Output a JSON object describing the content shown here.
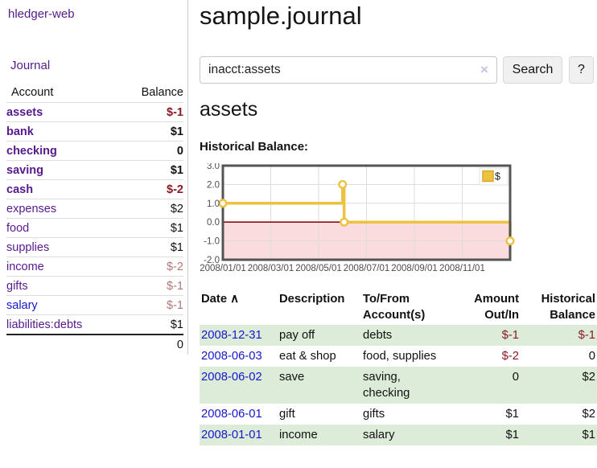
{
  "colors": {
    "purple": "#551a8b",
    "blue": "#1717cc",
    "neg_strong": "#8b1a26",
    "neg_faded": "#b27878",
    "stripe_green": "#ddecd8",
    "chart_gold": "#edc240",
    "chart_negative_fill": "#fadcdc",
    "chart_zero_line": "#8b1010"
  },
  "app": {
    "title": "hledger-web"
  },
  "nav": {
    "journal": "Journal"
  },
  "sidebar": {
    "account_header": "Account",
    "balance_header": "Balance",
    "accounts": [
      {
        "name": "assets",
        "indent": 1,
        "bold": true,
        "balance": "$-1",
        "balance_class": "neg-strong",
        "link_class": "purple"
      },
      {
        "name": "bank",
        "indent": 2,
        "bold": true,
        "balance": "$1",
        "balance_class": "",
        "link_class": "purple"
      },
      {
        "name": "checking",
        "indent": 3,
        "bold": true,
        "balance": "0",
        "balance_class": "",
        "link_class": "purple"
      },
      {
        "name": "saving",
        "indent": 3,
        "bold": true,
        "balance": "$1",
        "balance_class": "",
        "link_class": "purple"
      },
      {
        "name": "cash",
        "indent": 2,
        "bold": true,
        "balance": "$-2",
        "balance_class": "neg-strong",
        "link_class": "purple"
      },
      {
        "name": "expenses",
        "indent": 1,
        "bold": false,
        "balance": "$2",
        "balance_class": "",
        "link_class": "purple"
      },
      {
        "name": "food",
        "indent": 2,
        "bold": false,
        "balance": "$1",
        "balance_class": "",
        "link_class": "purple"
      },
      {
        "name": "supplies",
        "indent": 2,
        "bold": false,
        "balance": "$1",
        "balance_class": "",
        "link_class": "purple"
      },
      {
        "name": "income",
        "indent": 1,
        "bold": false,
        "balance": "$-2",
        "balance_class": "neg-faded",
        "link_class": "purple"
      },
      {
        "name": "gifts",
        "indent": 2,
        "bold": false,
        "balance": "$-1",
        "balance_class": "neg-faded",
        "link_class": "purple"
      },
      {
        "name": "salary",
        "indent": 2,
        "bold": false,
        "balance": "$-1",
        "balance_class": "neg-faded",
        "link_class": "blue"
      },
      {
        "name": "liabilities:debts",
        "indent": 1,
        "bold": false,
        "balance": "$1",
        "balance_class": "",
        "link_class": "purple"
      }
    ],
    "total": "0"
  },
  "main": {
    "title": "sample.journal",
    "account_heading": "assets",
    "section_label": "Historical Balance:"
  },
  "search": {
    "value": "inacct:assets",
    "clear_icon": "×",
    "search_button": "Search",
    "help_button": "?"
  },
  "chart_data": {
    "type": "line",
    "style": "steps",
    "title": "Historical Balance",
    "series": [
      {
        "name": "$",
        "color": "#edc240",
        "points": [
          [
            "2008-01-01",
            1
          ],
          [
            "2008-06-01",
            2
          ],
          [
            "2008-06-03",
            0
          ],
          [
            "2008-12-31",
            -1
          ]
        ]
      }
    ],
    "ylim": [
      -2,
      3
    ],
    "yticks": [
      "3.0",
      "2.0",
      "1.0",
      "0.0",
      "-1.0",
      "-2.0"
    ],
    "ytick_values": [
      3,
      2,
      1,
      0,
      -1,
      -2
    ],
    "xlim": [
      "2008-01-01",
      "2008-12-31"
    ],
    "xticks": [
      "2008/01/01",
      "2008/03/01",
      "2008/05/01",
      "2008/07/01",
      "2008/09/01",
      "2008/11/01"
    ],
    "grid": true,
    "legend": {
      "label": "$",
      "position": "top-right"
    },
    "negative_region_shaded": true
  },
  "register": {
    "headers": {
      "date": "Date",
      "sort_icon": "∧",
      "description": "Description",
      "tofrom": "To/From\nAccount(s)",
      "amount": "Amount\nOut/In",
      "balance": "Historical\nBalance"
    },
    "rows": [
      {
        "date": "2008-12-31",
        "description": "pay off",
        "tofrom": "debts",
        "amount": "$-1",
        "amount_neg": true,
        "balance": "$-1",
        "balance_neg": true
      },
      {
        "date": "2008-06-03",
        "description": "eat & shop",
        "tofrom": "food, supplies",
        "amount": "$-2",
        "amount_neg": true,
        "balance": "0",
        "balance_neg": false
      },
      {
        "date": "2008-06-02",
        "description": "save",
        "tofrom": "saving,\nchecking",
        "amount": "0",
        "amount_neg": false,
        "balance": "$2",
        "balance_neg": false
      },
      {
        "date": "2008-06-01",
        "description": "gift",
        "tofrom": "gifts",
        "amount": "$1",
        "amount_neg": false,
        "balance": "$2",
        "balance_neg": false
      },
      {
        "date": "2008-01-01",
        "description": "income",
        "tofrom": "salary",
        "amount": "$1",
        "amount_neg": false,
        "balance": "$1",
        "balance_neg": false
      }
    ]
  }
}
